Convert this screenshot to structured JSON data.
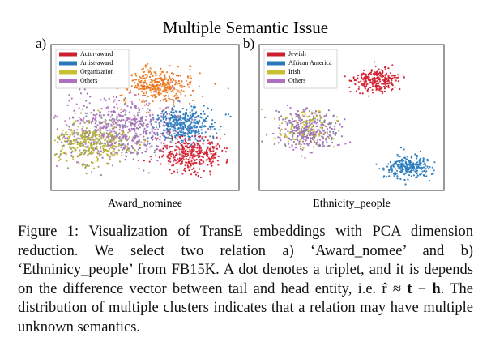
{
  "title": "Multiple Semantic Issue",
  "panels": [
    {
      "label": "a)",
      "xlabel": "Award_nominee",
      "legend": [
        {
          "name": "Actor-award",
          "color": "#cc2030"
        },
        {
          "name": "Artist-award",
          "color": "#2a78b8"
        },
        {
          "name": "Organization",
          "color": "#c8c030"
        },
        {
          "name": "Others",
          "color": "#b070c0"
        }
      ]
    },
    {
      "label": "b)",
      "xlabel": "Ethnicity_people",
      "legend": [
        {
          "name": "Jewish",
          "color": "#cc2030"
        },
        {
          "name": "African America",
          "color": "#2a78b8"
        },
        {
          "name": "Irish",
          "color": "#c8c030"
        },
        {
          "name": "Others",
          "color": "#b070c0"
        }
      ]
    }
  ],
  "caption": {
    "before": "Figure 1: Visualization of TransE embeddings with PCA dimension reduction. We select two relation a) ‘Award_nomee’ and b) ‘Ethninicy_people’ from FB15K. A dot denotes a triplet, and it is depends on the difference vector between tail and head entity, i.e. r̂ ≈ ",
    "bold": "t − h",
    "after": ". The distribution of multiple clusters indicates that a relation may have multiple unknown semantics."
  }
}
